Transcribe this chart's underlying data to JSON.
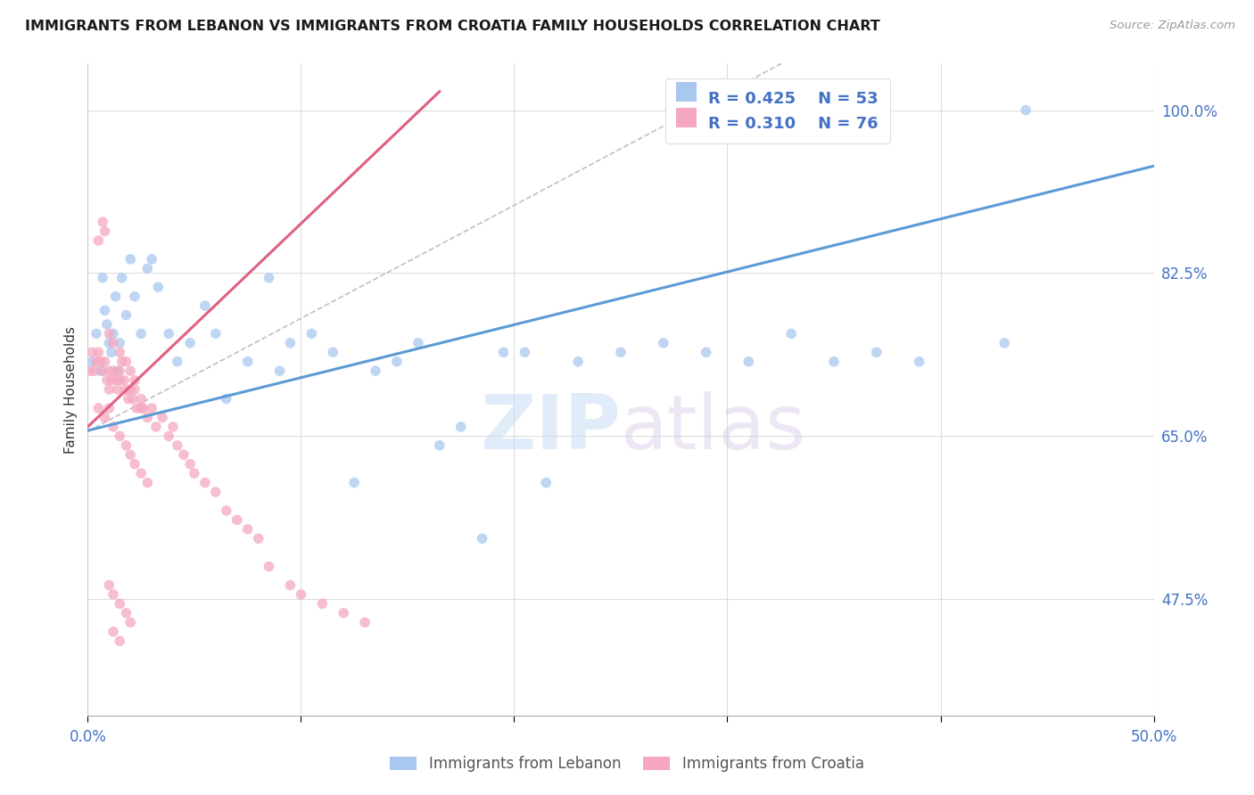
{
  "title": "IMMIGRANTS FROM LEBANON VS IMMIGRANTS FROM CROATIA FAMILY HOUSEHOLDS CORRELATION CHART",
  "source": "Source: ZipAtlas.com",
  "ylabel_label": "Family Households",
  "legend_label1": "Immigrants from Lebanon",
  "legend_label2": "Immigrants from Croatia",
  "R1": 0.425,
  "N1": 53,
  "R2": 0.31,
  "N2": 76,
  "color1": "#a8c8f0",
  "color2": "#f5a8c0",
  "trendline1_color": "#5b9bd5",
  "trendline2_color": "#e06080",
  "watermark_zip": "ZIP",
  "watermark_atlas": "atlas",
  "xmin": 0.0,
  "xmax": 0.5,
  "ymin": 0.35,
  "ymax": 1.05,
  "yticks": [
    0.475,
    0.65,
    0.825,
    1.0
  ],
  "xtick_positions": [
    0.0,
    0.1,
    0.2,
    0.3,
    0.4,
    0.5
  ],
  "leb_trendline": [
    [
      0.0,
      0.5
    ],
    [
      0.656,
      0.94
    ]
  ],
  "cro_trendline_solid": [
    [
      0.0,
      0.165
    ],
    [
      0.66,
      1.02
    ]
  ],
  "cro_trendline_dashed": [
    [
      0.0,
      0.35
    ],
    [
      0.655,
      1.08
    ]
  ],
  "lebanon_x": [
    0.002,
    0.004,
    0.006,
    0.007,
    0.008,
    0.009,
    0.01,
    0.011,
    0.012,
    0.013,
    0.014,
    0.015,
    0.016,
    0.018,
    0.02,
    0.022,
    0.025,
    0.028,
    0.03,
    0.033,
    0.038,
    0.042,
    0.048,
    0.055,
    0.06,
    0.065,
    0.075,
    0.085,
    0.09,
    0.095,
    0.105,
    0.115,
    0.125,
    0.135,
    0.145,
    0.155,
    0.165,
    0.175,
    0.185,
    0.195,
    0.205,
    0.215,
    0.23,
    0.25,
    0.27,
    0.29,
    0.31,
    0.33,
    0.35,
    0.37,
    0.39,
    0.43,
    0.44
  ],
  "lebanon_y": [
    0.73,
    0.76,
    0.72,
    0.82,
    0.785,
    0.77,
    0.75,
    0.74,
    0.76,
    0.8,
    0.72,
    0.75,
    0.82,
    0.78,
    0.84,
    0.8,
    0.76,
    0.83,
    0.84,
    0.81,
    0.76,
    0.73,
    0.75,
    0.79,
    0.76,
    0.69,
    0.73,
    0.82,
    0.72,
    0.75,
    0.76,
    0.74,
    0.6,
    0.72,
    0.73,
    0.75,
    0.64,
    0.66,
    0.54,
    0.74,
    0.74,
    0.6,
    0.73,
    0.74,
    0.75,
    0.74,
    0.73,
    0.76,
    0.73,
    0.74,
    0.73,
    0.75,
    1.0
  ],
  "croatia_x": [
    0.001,
    0.002,
    0.003,
    0.004,
    0.005,
    0.006,
    0.007,
    0.008,
    0.009,
    0.01,
    0.01,
    0.011,
    0.012,
    0.013,
    0.014,
    0.015,
    0.015,
    0.016,
    0.017,
    0.018,
    0.019,
    0.02,
    0.021,
    0.022,
    0.023,
    0.025,
    0.025,
    0.026,
    0.028,
    0.03,
    0.032,
    0.035,
    0.038,
    0.04,
    0.042,
    0.045,
    0.048,
    0.05,
    0.055,
    0.06,
    0.065,
    0.07,
    0.075,
    0.08,
    0.085,
    0.095,
    0.1,
    0.11,
    0.12,
    0.13,
    0.005,
    0.008,
    0.01,
    0.012,
    0.015,
    0.018,
    0.02,
    0.022,
    0.025,
    0.028,
    0.01,
    0.012,
    0.015,
    0.018,
    0.02,
    0.005,
    0.007,
    0.008,
    0.01,
    0.012,
    0.015,
    0.018,
    0.02,
    0.022,
    0.012,
    0.015
  ],
  "croatia_y": [
    0.72,
    0.74,
    0.72,
    0.73,
    0.74,
    0.73,
    0.72,
    0.73,
    0.71,
    0.72,
    0.7,
    0.71,
    0.72,
    0.71,
    0.7,
    0.71,
    0.72,
    0.73,
    0.71,
    0.7,
    0.69,
    0.7,
    0.69,
    0.7,
    0.68,
    0.68,
    0.69,
    0.68,
    0.67,
    0.68,
    0.66,
    0.67,
    0.65,
    0.66,
    0.64,
    0.63,
    0.62,
    0.61,
    0.6,
    0.59,
    0.57,
    0.56,
    0.55,
    0.54,
    0.51,
    0.49,
    0.48,
    0.47,
    0.46,
    0.45,
    0.68,
    0.67,
    0.68,
    0.66,
    0.65,
    0.64,
    0.63,
    0.62,
    0.61,
    0.6,
    0.49,
    0.48,
    0.47,
    0.46,
    0.45,
    0.86,
    0.88,
    0.87,
    0.76,
    0.75,
    0.74,
    0.73,
    0.72,
    0.71,
    0.44,
    0.43
  ]
}
